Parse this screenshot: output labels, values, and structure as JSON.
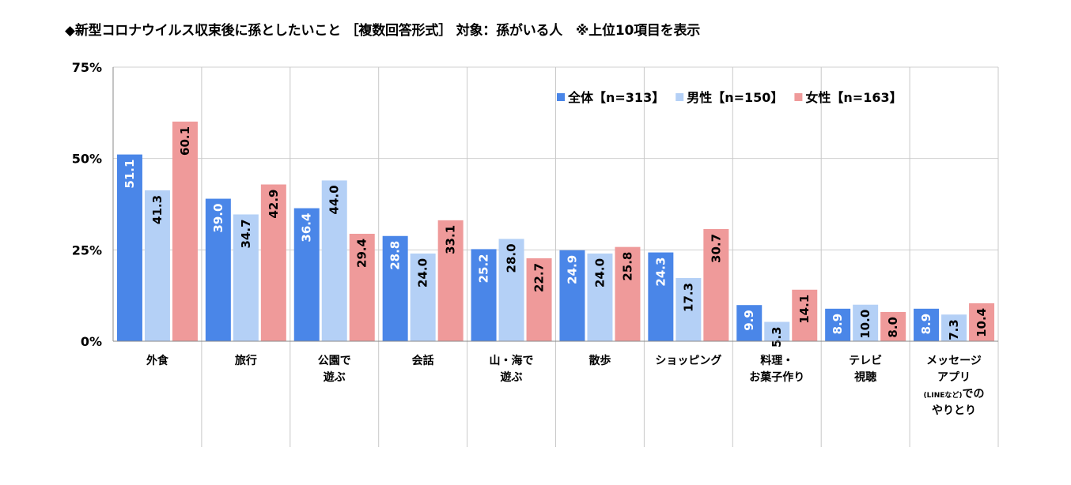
{
  "chart_data": {
    "type": "bar",
    "title": "◆新型コロナウイルス収束後に孫としたいこと ［複数回答形式］ 対象：孫がいる人　※上位10項目を表示",
    "xlabel": "",
    "ylabel": "",
    "ylim": [
      0,
      75
    ],
    "yticks": [
      {
        "value": 0,
        "label": "0%"
      },
      {
        "value": 25,
        "label": "25%"
      },
      {
        "value": 50,
        "label": "50%"
      },
      {
        "value": 75,
        "label": "75%"
      }
    ],
    "grid": true,
    "legend_position": "top-right",
    "categories": [
      [
        "外食"
      ],
      [
        "旅行"
      ],
      [
        "公園で",
        "遊ぶ"
      ],
      [
        "会話"
      ],
      [
        "山・海で",
        "遊ぶ"
      ],
      [
        "散歩"
      ],
      [
        "ショッピング"
      ],
      [
        "料理・",
        "お菓子作り"
      ],
      [
        "テレビ",
        "視聴"
      ],
      [
        "メッセージ",
        "アプリ",
        "(LINEなど)での",
        "やりとり"
      ]
    ],
    "series": [
      {
        "name": "全体【n=313】",
        "color": "#4a86e8",
        "label_color": "#ffffff",
        "values": [
          51.1,
          39.0,
          36.4,
          28.8,
          25.2,
          24.9,
          24.3,
          9.9,
          8.9,
          8.9
        ]
      },
      {
        "name": "男性【n=150】",
        "color": "#b4d0f6",
        "label_color": "#000000",
        "values": [
          41.3,
          34.7,
          44.0,
          24.0,
          28.0,
          24.0,
          17.3,
          5.3,
          10.0,
          7.3
        ]
      },
      {
        "name": "女性【n=163】",
        "color": "#ef9a9a",
        "label_color": "#000000",
        "values": [
          60.1,
          42.9,
          29.4,
          33.1,
          22.7,
          25.8,
          30.7,
          14.1,
          8.0,
          10.4
        ]
      }
    ]
  }
}
